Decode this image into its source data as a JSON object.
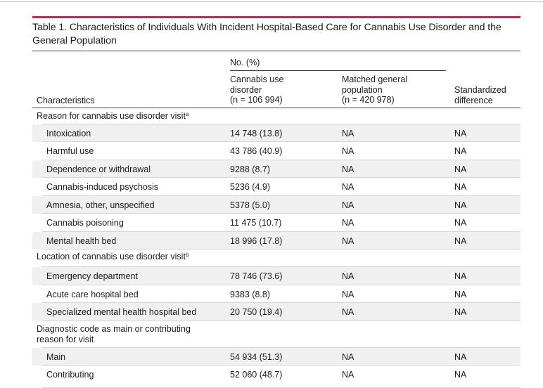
{
  "colors": {
    "accent": "#c8205e",
    "row_shade": "#f0f0f0"
  },
  "table": {
    "title": "Table 1. Characteristics of Individuals With Incident Hospital-Based Care for Cannabis Use Disorder and the General Population",
    "group_header": "No. (%)",
    "col_characteristics": "Characteristics",
    "col1_header": {
      "l1": "Cannabis use",
      "l2": "disorder",
      "l3": "(n = 106 994)"
    },
    "col2_header": {
      "l1": "Matched general",
      "l2": "population",
      "l3": "(n = 420 978)"
    },
    "col3_header": {
      "l1": "Standardized",
      "l2": "difference"
    },
    "sections": [
      {
        "label": "Reason for cannabis use disorder visit",
        "footnote": "a",
        "rows": [
          {
            "label": "Intoxication",
            "c1": "14 748 (13.8)",
            "c2": "NA",
            "c3": "NA"
          },
          {
            "label": "Harmful use",
            "c1": "43 786 (40.9)",
            "c2": "NA",
            "c3": "NA"
          },
          {
            "label": "Dependence or withdrawal",
            "c1": "9288 (8.7)",
            "c2": "NA",
            "c3": "NA"
          },
          {
            "label": "Cannabis-induced psychosis",
            "c1": "5236 (4.9)",
            "c2": "NA",
            "c3": "NA"
          },
          {
            "label": "Amnesia, other, unspecified",
            "c1": "5378 (5.0)",
            "c2": "NA",
            "c3": "NA"
          },
          {
            "label": "Cannabis poisoning",
            "c1": "11 475 (10.7)",
            "c2": "NA",
            "c3": "NA"
          },
          {
            "label": "Mental health bed",
            "c1": "18 996 (17.8)",
            "c2": "NA",
            "c3": "NA"
          }
        ]
      },
      {
        "label": "Location of cannabis use disorder visit",
        "footnote": "b",
        "rows": [
          {
            "label": "Emergency department",
            "c1": "78 746 (73.6)",
            "c2": "NA",
            "c3": "NA"
          },
          {
            "label": "Acute care hospital bed",
            "c1": "9383 (8.8)",
            "c2": "NA",
            "c3": "NA"
          },
          {
            "label": "Specialized mental health hospital bed",
            "c1": "20 750 (19.4)",
            "c2": "NA",
            "c3": "NA"
          }
        ]
      },
      {
        "label": "Diagnostic code as main or contributing reason for visit",
        "footnote": "",
        "rows": [
          {
            "label": "Main",
            "c1": "54 934 (51.3)",
            "c2": "NA",
            "c3": "NA"
          },
          {
            "label": "Contributing",
            "c1": "52 060 (48.7)",
            "c2": "NA",
            "c3": "NA"
          }
        ]
      }
    ]
  }
}
